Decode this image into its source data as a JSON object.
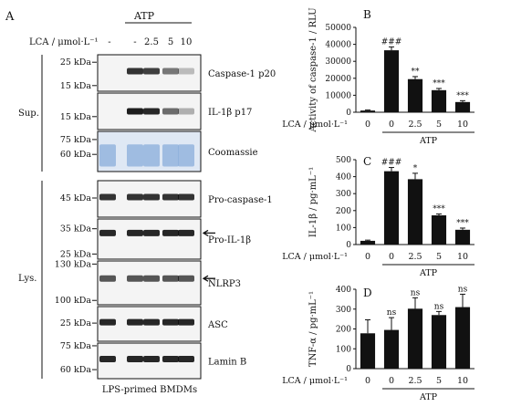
{
  "panel_a": {
    "letter": "A",
    "atp_label": "ATP",
    "lca_label": "LCA / μmol·L⁻¹",
    "lane_values": [
      "-",
      "-",
      "2.5",
      "5",
      "10"
    ],
    "group_sup": "Sup.",
    "group_lys": "Lys.",
    "footer": "LPS-primed BMDMs",
    "blots": [
      {
        "name": "Caspase-1 p20",
        "markers": [
          "25 kDa",
          "15 kDa"
        ],
        "intensity": [
          0.0,
          0.85,
          0.8,
          0.55,
          0.25
        ]
      },
      {
        "name": "IL-1β p17",
        "markers": [
          "15 kDa"
        ],
        "intensity": [
          0.0,
          0.95,
          0.9,
          0.6,
          0.3
        ]
      },
      {
        "name": "Coomassie",
        "markers": [
          "75 kDa",
          "60 kDa"
        ],
        "intensity": [
          0.6,
          0.6,
          0.6,
          0.6,
          0.6
        ]
      },
      {
        "name": "Pro-caspase-1",
        "markers": [
          "45 kDa"
        ],
        "intensity": [
          0.85,
          0.85,
          0.85,
          0.85,
          0.85
        ]
      },
      {
        "name": "Pro-IL-1β",
        "markers": [
          "35 kDa",
          "25 kDa"
        ],
        "intensity": [
          0.9,
          0.9,
          0.9,
          0.9,
          0.9
        ]
      },
      {
        "name": "NLRP3",
        "markers": [
          "130 kDa",
          "100 kDa"
        ],
        "intensity": [
          0.7,
          0.7,
          0.7,
          0.7,
          0.7
        ]
      },
      {
        "name": "ASC",
        "markers": [
          "25 kDa"
        ],
        "intensity": [
          0.9,
          0.9,
          0.9,
          0.9,
          0.9
        ]
      },
      {
        "name": "Lamin B",
        "markers": [
          "75 kDa",
          "60 kDa"
        ],
        "intensity": [
          0.9,
          0.9,
          0.9,
          0.9,
          0.9
        ]
      }
    ]
  },
  "chart_data": [
    {
      "panel": "B",
      "type": "bar",
      "ylabel": "Activity of caspase-1 / RLU",
      "xlabel": "LCA / μmol·L⁻¹",
      "group_label": "ATP",
      "categories": [
        "0",
        "0",
        "2.5",
        "5",
        "10"
      ],
      "values": [
        1000,
        36500,
        19500,
        13000,
        6000
      ],
      "errors": [
        300,
        2000,
        1500,
        1000,
        800
      ],
      "significance": [
        "",
        "###",
        "**",
        "***",
        "***"
      ],
      "ylim": [
        0,
        50000
      ],
      "yticks": [
        "0",
        "10000",
        "20000",
        "30000",
        "40000",
        "50000"
      ],
      "tickvals": [
        0,
        10000,
        20000,
        30000,
        40000,
        50000
      ]
    },
    {
      "panel": "C",
      "type": "bar",
      "ylabel": "IL-1β / pg·mL⁻¹",
      "xlabel": "LCA / μmol·L⁻¹",
      "group_label": "ATP",
      "categories": [
        "0",
        "0",
        "2.5",
        "5",
        "10"
      ],
      "values": [
        22,
        432,
        385,
        172,
        87
      ],
      "errors": [
        4,
        22,
        35,
        8,
        10
      ],
      "significance": [
        "",
        "###",
        "*",
        "***",
        "***"
      ],
      "ylim": [
        0,
        500
      ],
      "yticks": [
        "0",
        "100",
        "200",
        "300",
        "400",
        "500"
      ],
      "tickvals": [
        0,
        100,
        200,
        300,
        400,
        500
      ]
    },
    {
      "panel": "D",
      "type": "bar",
      "ylabel": "TNF-α / pg·mL⁻¹",
      "xlabel": "LCA / μmol·L⁻¹",
      "group_label": "ATP",
      "categories": [
        "0",
        "0",
        "2.5",
        "5",
        "10"
      ],
      "values": [
        178,
        195,
        302,
        270,
        310
      ],
      "errors": [
        68,
        62,
        55,
        18,
        65
      ],
      "significance": [
        "",
        "ns",
        "ns",
        "ns",
        "ns"
      ],
      "ylim": [
        0,
        400
      ],
      "yticks": [
        "0",
        "100",
        "200",
        "300",
        "400"
      ],
      "tickvals": [
        0,
        100,
        200,
        300,
        400
      ]
    }
  ]
}
